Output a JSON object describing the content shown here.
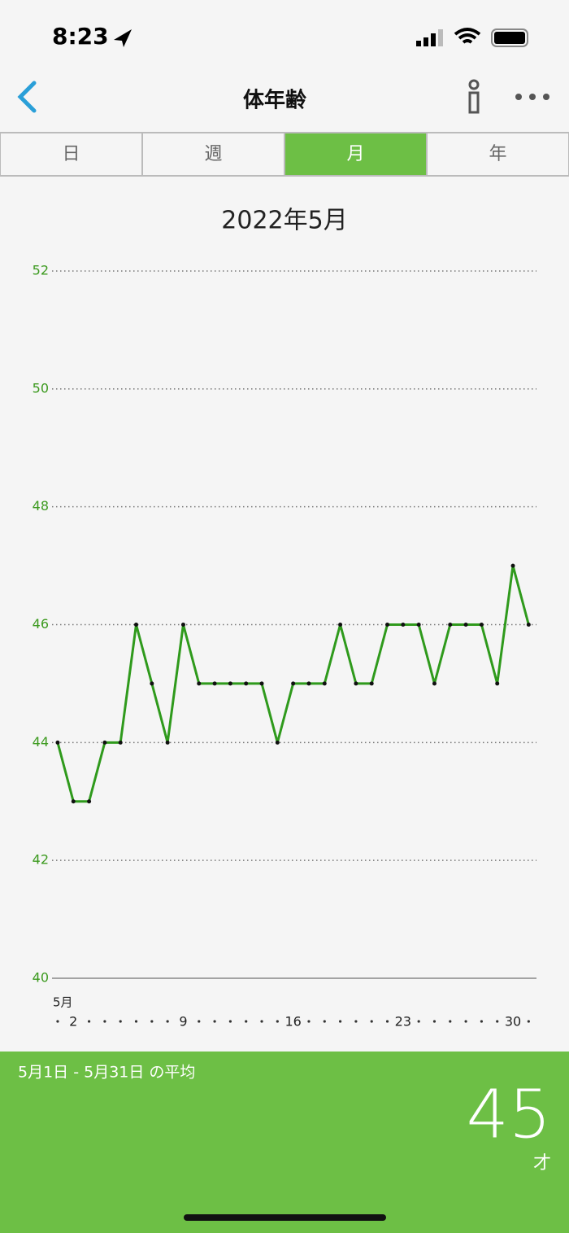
{
  "status_bar": {
    "time": "8:23"
  },
  "nav": {
    "title": "体年齢"
  },
  "tabs": [
    "日",
    "週",
    "月",
    "年"
  ],
  "active_tab": 2,
  "chart_data": {
    "type": "line",
    "title": "2022年5月",
    "x_unit_label": "5月",
    "x": [
      1,
      2,
      3,
      4,
      5,
      6,
      7,
      8,
      9,
      10,
      11,
      12,
      13,
      14,
      15,
      16,
      17,
      18,
      19,
      20,
      21,
      22,
      23,
      24,
      25,
      26,
      27,
      28,
      29,
      30,
      31
    ],
    "values": [
      44,
      43,
      43,
      44,
      44,
      46,
      45,
      44,
      46,
      45,
      45,
      45,
      45,
      45,
      44,
      45,
      45,
      45,
      46,
      45,
      45,
      46,
      46,
      46,
      45,
      46,
      46,
      46,
      45,
      47,
      46
    ],
    "color": "#2f9a1c",
    "xlim": [
      0.64,
      31.5
    ],
    "xticks": [
      2,
      9,
      16,
      23,
      30
    ],
    "ylim": [
      40,
      52
    ],
    "yticks": [
      40,
      42,
      44,
      46,
      48,
      50,
      52
    ],
    "grid": true
  },
  "summary": {
    "label": "5月1日 - 5月31日 の平均",
    "value": "45",
    "unit": "才"
  }
}
